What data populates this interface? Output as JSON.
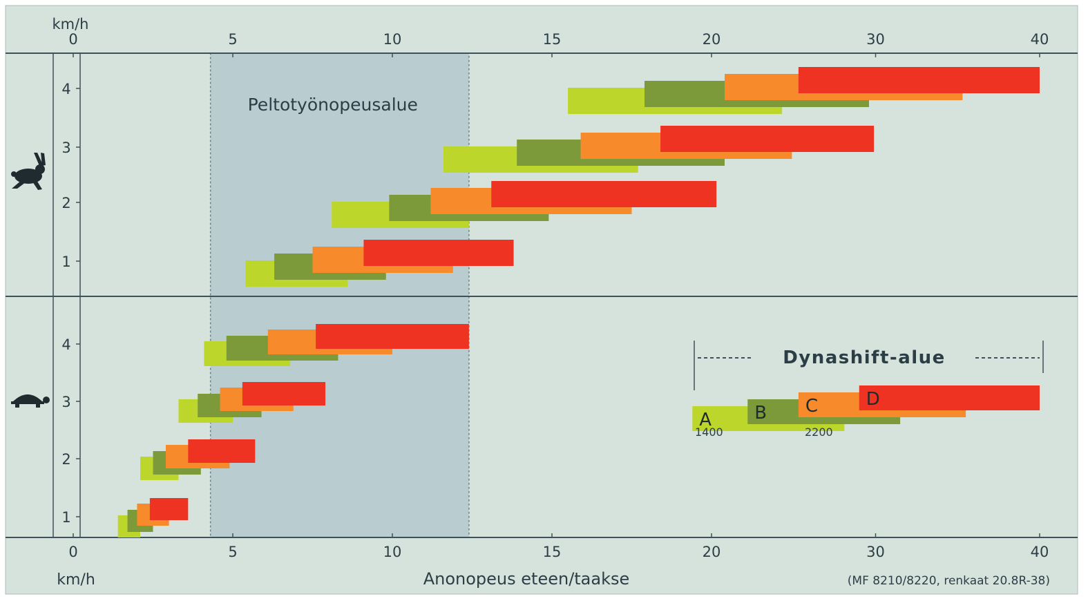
{
  "chart_data": {
    "type": "bar",
    "title": "",
    "xlabel": "Anonopeus eteen/taakse",
    "x_unit_label": "km/h",
    "note": "(MF 8210/8220, renkaat 20.8R-38)",
    "x_ticks": [
      0,
      5,
      10,
      15,
      20,
      30,
      40
    ],
    "x_tick_labels": [
      "0",
      "5",
      "10",
      "15",
      "20",
      "30",
      "40"
    ],
    "field_zone": {
      "label": "Peltotyönopeusalue",
      "from": 4.3,
      "to": 12.4
    },
    "groups": [
      {
        "name": "fast",
        "icon": "hare-icon",
        "gears": [
          "4",
          "3",
          "2",
          "1"
        ]
      },
      {
        "name": "slow",
        "icon": "tortoise-icon",
        "gears": [
          "4",
          "3",
          "2",
          "1"
        ]
      }
    ],
    "series_colors": {
      "A": "#bdd62b",
      "B": "#7d9a3a",
      "C": "#f78a2a",
      "D": "#ee3322"
    },
    "bars": [
      {
        "group": "fast",
        "gear": "4",
        "A": [
          15.5,
          24.3
        ],
        "B": [
          17.9,
          29.6
        ],
        "C": [
          20.8,
          35.3
        ],
        "D": [
          25.3,
          40.0
        ]
      },
      {
        "group": "fast",
        "gear": "3",
        "A": [
          11.6,
          17.7
        ],
        "B": [
          13.9,
          20.8
        ],
        "C": [
          15.9,
          24.9
        ],
        "D": [
          18.4,
          29.9
        ]
      },
      {
        "group": "fast",
        "gear": "2",
        "A": [
          8.1,
          12.4
        ],
        "B": [
          9.9,
          14.9
        ],
        "C": [
          11.2,
          17.5
        ],
        "D": [
          13.1,
          20.3
        ]
      },
      {
        "group": "fast",
        "gear": "1",
        "A": [
          5.4,
          8.6
        ],
        "B": [
          6.3,
          9.8
        ],
        "C": [
          7.5,
          11.9
        ],
        "D": [
          9.1,
          13.8
        ]
      },
      {
        "group": "slow",
        "gear": "4",
        "A": [
          4.1,
          6.8
        ],
        "B": [
          4.8,
          8.3
        ],
        "C": [
          6.1,
          10.0
        ],
        "D": [
          7.6,
          12.4
        ]
      },
      {
        "group": "slow",
        "gear": "3",
        "A": [
          3.3,
          5.0
        ],
        "B": [
          3.9,
          5.9
        ],
        "C": [
          4.6,
          6.9
        ],
        "D": [
          5.3,
          7.9
        ]
      },
      {
        "group": "slow",
        "gear": "2",
        "A": [
          2.1,
          3.3
        ],
        "B": [
          2.5,
          4.0
        ],
        "C": [
          2.9,
          4.9
        ],
        "D": [
          3.6,
          5.7
        ]
      },
      {
        "group": "slow",
        "gear": "1",
        "A": [
          1.4,
          2.1
        ],
        "B": [
          1.7,
          2.5
        ],
        "C": [
          2.0,
          3.0
        ],
        "D": [
          2.4,
          3.6
        ]
      }
    ],
    "legend": {
      "title": "Dynashift-alue",
      "items": [
        "A",
        "B",
        "C",
        "D"
      ],
      "rpm_labels": [
        "1400",
        "2200"
      ]
    },
    "legend_bar": {
      "A": [
        19.4,
        28.1
      ],
      "B": [
        22.2,
        31.5
      ],
      "C": [
        25.3,
        35.5
      ],
      "D": [
        29.0,
        40.0
      ]
    }
  }
}
